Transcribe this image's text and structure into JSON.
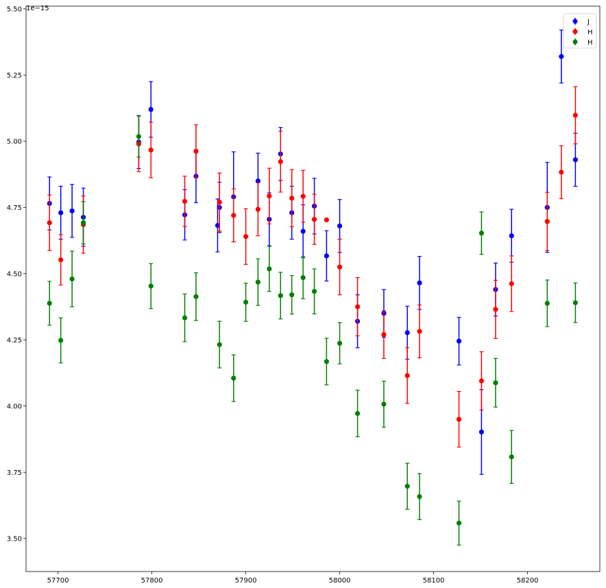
{
  "chart_data": {
    "type": "scatter",
    "title": "",
    "xlabel": "",
    "ylabel": "",
    "offset_label": "1e−15",
    "xlim": [
      57666,
      58277
    ],
    "ylim": [
      3.375,
      5.51
    ],
    "xticks": [
      57700,
      57800,
      57900,
      58000,
      58100,
      58200
    ],
    "xtick_labels": [
      "57700",
      "57800",
      "57900",
      "58000",
      "58100",
      "58200"
    ],
    "yticks": [
      3.5,
      3.75,
      4.0,
      4.25,
      4.5,
      4.75,
      5.0,
      5.25,
      5.5
    ],
    "ytick_labels": [
      "3.50",
      "3.75",
      "4.00",
      "4.25",
      "4.50",
      "4.75",
      "5.00",
      "5.25",
      "5.50"
    ],
    "grid": false,
    "legend_position": "top-right",
    "series": [
      {
        "name": "J",
        "color": "#0000ff",
        "points": [
          {
            "x": 57691,
            "y": 4.765,
            "err": 0.1
          },
          {
            "x": 57703,
            "y": 4.73,
            "err": 0.1
          },
          {
            "x": 57715,
            "y": 4.737,
            "err": 0.1
          },
          {
            "x": 57727,
            "y": 4.713,
            "err": 0.11
          },
          {
            "x": 57786,
            "y": 4.997,
            "err": 0.1
          },
          {
            "x": 57799,
            "y": 5.12,
            "err": 0.105
          },
          {
            "x": 57835,
            "y": 4.722,
            "err": 0.095
          },
          {
            "x": 57847,
            "y": 4.868,
            "err": 0.1
          },
          {
            "x": 57870,
            "y": 4.682,
            "err": 0.1
          },
          {
            "x": 57872,
            "y": 4.75,
            "err": 0.095
          },
          {
            "x": 57887,
            "y": 4.79,
            "err": 0.17
          },
          {
            "x": 57913,
            "y": 4.85,
            "err": 0.105
          },
          {
            "x": 57925,
            "y": 4.705,
            "err": 0.1
          },
          {
            "x": 57937,
            "y": 4.952,
            "err": 0.1
          },
          {
            "x": 57949,
            "y": 4.73,
            "err": 0.1
          },
          {
            "x": 57961,
            "y": 4.66,
            "err": 0.1
          },
          {
            "x": 57973,
            "y": 4.755,
            "err": 0.105
          },
          {
            "x": 57986,
            "y": 4.567,
            "err": 0.095
          },
          {
            "x": 58000,
            "y": 4.68,
            "err": 0.1
          },
          {
            "x": 58019,
            "y": 4.32,
            "err": 0.1
          },
          {
            "x": 58047,
            "y": 4.35,
            "err": 0.09
          },
          {
            "x": 58072,
            "y": 4.277,
            "err": 0.1
          },
          {
            "x": 58085,
            "y": 4.465,
            "err": 0.1
          },
          {
            "x": 58127,
            "y": 4.245,
            "err": 0.09
          },
          {
            "x": 58151,
            "y": 3.902,
            "err": 0.16
          },
          {
            "x": 58166,
            "y": 4.44,
            "err": 0.1
          },
          {
            "x": 58183,
            "y": 4.643,
            "err": 0.1
          },
          {
            "x": 58221,
            "y": 4.75,
            "err": 0.17
          },
          {
            "x": 58236,
            "y": 5.32,
            "err": 0.1
          },
          {
            "x": 58251,
            "y": 4.93,
            "err": 0.1
          }
        ]
      },
      {
        "name": "H",
        "color": "#ff0000",
        "points": [
          {
            "x": 57691,
            "y": 4.692,
            "err": 0.105
          },
          {
            "x": 57703,
            "y": 4.552,
            "err": 0.095
          },
          {
            "x": 57727,
            "y": 4.685,
            "err": 0.108
          },
          {
            "x": 57786,
            "y": 4.99,
            "err": 0.105
          },
          {
            "x": 57799,
            "y": 4.967,
            "err": 0.105
          },
          {
            "x": 57835,
            "y": 4.773,
            "err": 0.095
          },
          {
            "x": 57847,
            "y": 4.962,
            "err": 0.1
          },
          {
            "x": 57872,
            "y": 4.77,
            "err": 0.11
          },
          {
            "x": 57887,
            "y": 4.72,
            "err": 0.1
          },
          {
            "x": 57900,
            "y": 4.64,
            "err": 0.105
          },
          {
            "x": 57913,
            "y": 4.743,
            "err": 0.1
          },
          {
            "x": 57925,
            "y": 4.793,
            "err": 0.105
          },
          {
            "x": 57937,
            "y": 4.923,
            "err": 0.115
          },
          {
            "x": 57949,
            "y": 4.785,
            "err": 0.108
          },
          {
            "x": 57961,
            "y": 4.792,
            "err": 0.098
          },
          {
            "x": 57973,
            "y": 4.705,
            "err": 0.095
          },
          {
            "x": 57986,
            "y": 4.703,
            "err": 0.0
          },
          {
            "x": 58000,
            "y": 4.525,
            "err": 0.105
          },
          {
            "x": 58019,
            "y": 4.375,
            "err": 0.11
          },
          {
            "x": 58047,
            "y": 4.27,
            "err": 0.09
          },
          {
            "x": 58072,
            "y": 4.115,
            "err": 0.105
          },
          {
            "x": 58085,
            "y": 4.282,
            "err": 0.1
          },
          {
            "x": 58127,
            "y": 3.95,
            "err": 0.105
          },
          {
            "x": 58151,
            "y": 4.095,
            "err": 0.11
          },
          {
            "x": 58166,
            "y": 4.365,
            "err": 0.11
          },
          {
            "x": 58183,
            "y": 4.462,
            "err": 0.105
          },
          {
            "x": 58221,
            "y": 4.697,
            "err": 0.11
          },
          {
            "x": 58236,
            "y": 4.883,
            "err": 0.1
          },
          {
            "x": 58251,
            "y": 5.098,
            "err": 0.108
          }
        ]
      },
      {
        "name": "H",
        "color": "#008000",
        "points": [
          {
            "x": 57691,
            "y": 4.388,
            "err": 0.083
          },
          {
            "x": 57703,
            "y": 4.248,
            "err": 0.085
          },
          {
            "x": 57715,
            "y": 4.48,
            "err": 0.105
          },
          {
            "x": 57727,
            "y": 4.692,
            "err": 0.08
          },
          {
            "x": 57786,
            "y": 5.018,
            "err": 0.078
          },
          {
            "x": 57799,
            "y": 4.453,
            "err": 0.085
          },
          {
            "x": 57835,
            "y": 4.333,
            "err": 0.09
          },
          {
            "x": 57847,
            "y": 4.413,
            "err": 0.09
          },
          {
            "x": 57872,
            "y": 4.232,
            "err": 0.088
          },
          {
            "x": 57887,
            "y": 4.105,
            "err": 0.088
          },
          {
            "x": 57900,
            "y": 4.392,
            "err": 0.072
          },
          {
            "x": 57913,
            "y": 4.468,
            "err": 0.088
          },
          {
            "x": 57925,
            "y": 4.518,
            "err": 0.085
          },
          {
            "x": 57937,
            "y": 4.417,
            "err": 0.088
          },
          {
            "x": 57949,
            "y": 4.42,
            "err": 0.073
          },
          {
            "x": 57961,
            "y": 4.485,
            "err": 0.08
          },
          {
            "x": 57973,
            "y": 4.433,
            "err": 0.085
          },
          {
            "x": 57986,
            "y": 4.168,
            "err": 0.088
          },
          {
            "x": 58000,
            "y": 4.237,
            "err": 0.078
          },
          {
            "x": 58019,
            "y": 3.972,
            "err": 0.088
          },
          {
            "x": 58047,
            "y": 4.007,
            "err": 0.087
          },
          {
            "x": 58072,
            "y": 3.697,
            "err": 0.087
          },
          {
            "x": 58085,
            "y": 3.658,
            "err": 0.087
          },
          {
            "x": 58127,
            "y": 3.558,
            "err": 0.083
          },
          {
            "x": 58151,
            "y": 4.653,
            "err": 0.08
          },
          {
            "x": 58166,
            "y": 4.088,
            "err": 0.092
          },
          {
            "x": 58183,
            "y": 3.808,
            "err": 0.1
          },
          {
            "x": 58221,
            "y": 4.388,
            "err": 0.088
          },
          {
            "x": 58251,
            "y": 4.39,
            "err": 0.075
          }
        ]
      }
    ]
  }
}
